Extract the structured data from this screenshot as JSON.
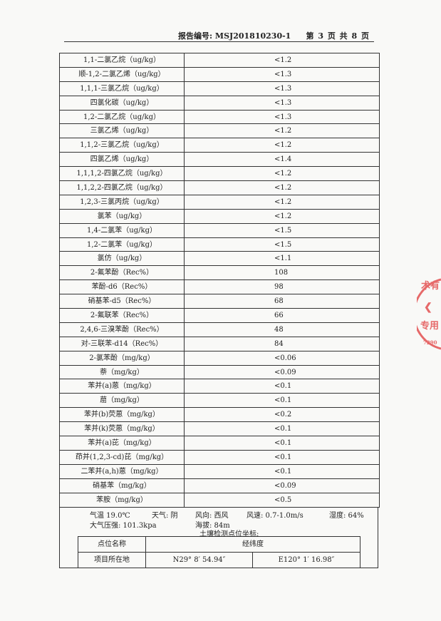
{
  "header": {
    "report_no": "报告编号: MSJ201810230-1",
    "page": "第 3 页  共 8 页"
  },
  "rows": [
    {
      "name": "1,1-二氯乙烷（ug/kg）",
      "value": "<1.2"
    },
    {
      "name": "顺-1,2-二氯乙烯（ug/kg）",
      "value": "<1.3"
    },
    {
      "name": "1,1,1-三氯乙烷（ug/kg）",
      "value": "<1.3"
    },
    {
      "name": "四氯化碳（ug/kg）",
      "value": "<1.3"
    },
    {
      "name": "1,2-二氯乙烷（ug/kg）",
      "value": "<1.3"
    },
    {
      "name": "三氯乙烯（ug/kg）",
      "value": "<1.2"
    },
    {
      "name": "1,1,2-三氯乙烷（ug/kg）",
      "value": "<1.2"
    },
    {
      "name": "四氯乙烯（ug/kg）",
      "value": "<1.4"
    },
    {
      "name": "1,1,1,2-四氯乙烷（ug/kg）",
      "value": "<1.2"
    },
    {
      "name": "1,1,2,2-四氯乙烷（ug/kg）",
      "value": "<1.2"
    },
    {
      "name": "1,2,3-三氯丙烷（ug/kg）",
      "value": "<1.2"
    },
    {
      "name": "氯苯（ug/kg）",
      "value": "<1.2"
    },
    {
      "name": "1,4-二氯苯（ug/kg）",
      "value": "<1.5"
    },
    {
      "name": "1,2-二氯苯（ug/kg）",
      "value": "<1.5"
    },
    {
      "name": "氯仿（ug/kg）",
      "value": "<1.1"
    },
    {
      "name": "2-氟苯酚（Rec%）",
      "value": "108"
    },
    {
      "name": "苯酚-d6（Rec%）",
      "value": "98"
    },
    {
      "name": "硝基苯-d5（Rec%）",
      "value": "68"
    },
    {
      "name": "2-氟联苯（Rec%）",
      "value": "66"
    },
    {
      "name": "2,4,6-三溴苯酚（Rec%）",
      "value": "48"
    },
    {
      "name": "对-三联苯-d14（Rec%）",
      "value": "84"
    },
    {
      "name": "2-氯苯酚（mg/kg）",
      "value": "<0.06"
    },
    {
      "name": "萘（mg/kg）",
      "value": "<0.09"
    },
    {
      "name": "苯并(a)蒽（mg/kg）",
      "value": "<0.1"
    },
    {
      "name": "䓛（mg/kg）",
      "value": "<0.1"
    },
    {
      "name": "苯并(b)荧蒽（mg/kg）",
      "value": "<0.2"
    },
    {
      "name": "苯并(k)荧蒽（mg/kg）",
      "value": "<0.1"
    },
    {
      "name": "苯并(a)芘（mg/kg）",
      "value": "<0.1"
    },
    {
      "name": "茚并(1,2,3-cd)芘（mg/kg）",
      "value": "<0.1"
    },
    {
      "name": "二苯并(a,h)蒽（mg/kg）",
      "value": "<0.1"
    },
    {
      "name": "硝基苯（mg/kg）",
      "value": "<0.09"
    },
    {
      "name": "苯胺（mg/kg）",
      "value": "<0.5"
    }
  ],
  "weather": {
    "temperature": "气温 19.0℃",
    "weather": "天气: 阴",
    "wind_dir": "风向: 西风",
    "wind_speed": "风速: 0.7-1.0m/s",
    "humidity": "湿度: 64%",
    "pressure": "大气压强: 101.3kpa",
    "altitude": "海拔:  84m",
    "coord_title": "土壤检测点位坐标:"
  },
  "coords": {
    "col_name": "点位名称",
    "col_latlon": "经纬度",
    "site": "项目所在地",
    "lat": "N29° 8′ 54.94″",
    "lon": "E120° 1′ 16.98″"
  },
  "stamp": {
    "text1": "术有",
    "text2": "专用",
    "text3": "7290",
    "color": "#e0393a"
  }
}
